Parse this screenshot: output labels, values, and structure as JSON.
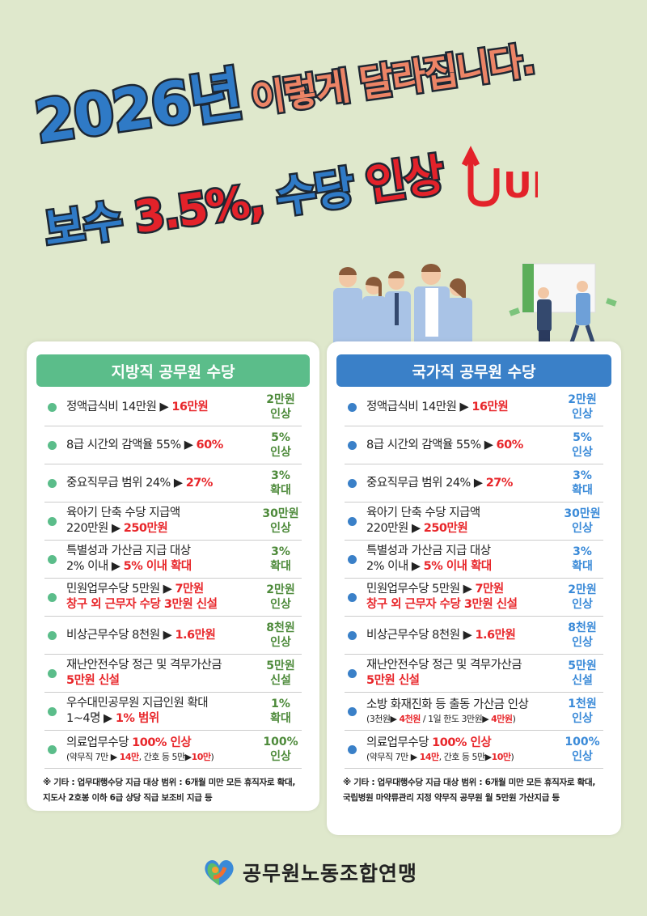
{
  "headline": {
    "year": "2026년",
    "sub": "이렇게 달라집니다.",
    "line2": [
      {
        "t": "보수 ",
        "c": "blue"
      },
      {
        "t": "3.5%, ",
        "c": "red"
      },
      {
        "t": "수당 ",
        "c": "blue"
      },
      {
        "t": "인상",
        "c": "red"
      }
    ],
    "up": "UP"
  },
  "colors": {
    "background": "#dfe8cc",
    "green": "#5bbd8a",
    "blue": "#3a80c8",
    "red": "#e8262a"
  },
  "left": {
    "title": "지방직 공무원 수당",
    "items": [
      {
        "lines": [
          [
            {
              "t": "정액급식비 14만원 ▶ "
            },
            {
              "t": "16만원",
              "r": 1
            }
          ]
        ],
        "badge": [
          "2만원",
          "인상"
        ]
      },
      {
        "lines": [
          [
            {
              "t": "8급 시간외 감액율 55% ▶ "
            },
            {
              "t": "60%",
              "r": 1
            }
          ]
        ],
        "badge": [
          "5%",
          "인상"
        ]
      },
      {
        "lines": [
          [
            {
              "t": "중요직무급 범위 24% ▶ "
            },
            {
              "t": "27%",
              "r": 1
            }
          ]
        ],
        "badge": [
          "3%",
          "확대"
        ]
      },
      {
        "lines": [
          [
            {
              "t": "육아기 단축 수당 지급액"
            }
          ],
          [
            {
              "t": "220만원  ▶ "
            },
            {
              "t": "250만원",
              "r": 1
            }
          ]
        ],
        "badge": [
          "30만원",
          "인상"
        ]
      },
      {
        "lines": [
          [
            {
              "t": "특별성과 가산금 지급 대상"
            }
          ],
          [
            {
              "t": "2%  이내 ▶ "
            },
            {
              "t": "5% 이내 확대",
              "r": 1
            }
          ]
        ],
        "badge": [
          "3%",
          "확대"
        ]
      },
      {
        "lines": [
          [
            {
              "t": "민원업무수당 5만원 ▶ "
            },
            {
              "t": "7만원",
              "r": 1
            }
          ],
          [
            {
              "t": "창구 외 근무자 수당 3만원 신설",
              "r": 1
            }
          ]
        ],
        "badge": [
          "2만원",
          "인상"
        ]
      },
      {
        "lines": [
          [
            {
              "t": "비상근무수당 8천원  ▶  "
            },
            {
              "t": "1.6만원",
              "r": 1
            }
          ]
        ],
        "badge": [
          "8천원",
          "인상"
        ]
      },
      {
        "lines": [
          [
            {
              "t": "재난안전수당 정근 및 격무가산금"
            }
          ],
          [
            {
              "t": "5만원 신설",
              "r": 1
            }
          ]
        ],
        "badge": [
          "5만원",
          "신설"
        ]
      },
      {
        "lines": [
          [
            {
              "t": "우수대민공무원 지급인원 확대"
            }
          ],
          [
            {
              "t": " 1~4명   ▶  "
            },
            {
              "t": "1% 범위",
              "r": 1
            }
          ]
        ],
        "badge": [
          "1%",
          "확대"
        ]
      },
      {
        "lines": [
          [
            {
              "t": "의료업무수당 "
            },
            {
              "t": "100% 인상",
              "r": 1
            }
          ],
          [
            {
              "t": "(약무직 7만 ▶ ",
              "s": 1
            },
            {
              "t": "14만",
              "r": 1,
              "s": 1
            },
            {
              "t": ", 간호 등 5만▶",
              "s": 1
            },
            {
              "t": "10만",
              "r": 1,
              "s": 1
            },
            {
              "t": ")",
              "s": 1
            }
          ]
        ],
        "badge": [
          "100%",
          "인상"
        ]
      }
    ],
    "note": "※ 기타 : 업무대행수당 지급 대상 범위 : 6개월 미만 모든 휴직자로 확대, 지도사 2호봉 이하 6급 상당 직급 보조비 지급 등"
  },
  "right": {
    "title": "국가직 공무원 수당",
    "items": [
      {
        "lines": [
          [
            {
              "t": "정액급식비 14만원 ▶ "
            },
            {
              "t": "16만원",
              "r": 1
            }
          ]
        ],
        "badge": [
          "2만원",
          "인상"
        ]
      },
      {
        "lines": [
          [
            {
              "t": "8급 시간외 감액율 55% ▶ "
            },
            {
              "t": "60%",
              "r": 1
            }
          ]
        ],
        "badge": [
          "5%",
          "인상"
        ]
      },
      {
        "lines": [
          [
            {
              "t": "중요직무급 범위 24% ▶ "
            },
            {
              "t": "27%",
              "r": 1
            }
          ]
        ],
        "badge": [
          "3%",
          "확대"
        ]
      },
      {
        "lines": [
          [
            {
              "t": "육아기 단축 수당 지급액"
            }
          ],
          [
            {
              "t": "220만원  ▶ "
            },
            {
              "t": "250만원",
              "r": 1
            }
          ]
        ],
        "badge": [
          "30만원",
          "인상"
        ]
      },
      {
        "lines": [
          [
            {
              "t": "특별성과 가산금 지급 대상"
            }
          ],
          [
            {
              "t": "2% 이내 ▶ "
            },
            {
              "t": "5% 이내 확대",
              "r": 1
            }
          ]
        ],
        "badge": [
          "3%",
          "확대"
        ]
      },
      {
        "lines": [
          [
            {
              "t": "민원업무수당 5만원 ▶ "
            },
            {
              "t": "7만원",
              "r": 1
            }
          ],
          [
            {
              "t": "창구 외 근무자 수당 3만원 신설",
              "r": 1
            }
          ]
        ],
        "badge": [
          "2만원",
          "인상"
        ]
      },
      {
        "lines": [
          [
            {
              "t": "비상근무수당 8천원  ▶  "
            },
            {
              "t": "1.6만원",
              "r": 1
            }
          ]
        ],
        "badge": [
          "8천원",
          "인상"
        ]
      },
      {
        "lines": [
          [
            {
              "t": "재난안전수당 정근 및 격무가산금"
            }
          ],
          [
            {
              "t": "5만원 신설",
              "r": 1
            }
          ]
        ],
        "badge": [
          "5만원",
          "신설"
        ]
      },
      {
        "lines": [
          [
            {
              "t": "소방 화재진화 등 출동 가산금 인상"
            }
          ],
          [
            {
              "t": "(3천원▶ ",
              "s": 1
            },
            {
              "t": "4천원",
              "r": 1,
              "s": 1
            },
            {
              "t": " / 1일 한도 3만원▶ ",
              "s": 1
            },
            {
              "t": "4만원",
              "r": 1,
              "s": 1
            },
            {
              "t": ")",
              "s": 1
            }
          ]
        ],
        "badge": [
          "1천원",
          "인상"
        ]
      },
      {
        "lines": [
          [
            {
              "t": "의료업무수당 "
            },
            {
              "t": "100% 인상",
              "r": 1
            }
          ],
          [
            {
              "t": "(약무직 7만 ▶ ",
              "s": 1
            },
            {
              "t": "14만",
              "r": 1,
              "s": 1
            },
            {
              "t": ", 간호 등 5만▶",
              "s": 1
            },
            {
              "t": "10만",
              "r": 1,
              "s": 1
            },
            {
              "t": ")",
              "s": 1
            }
          ]
        ],
        "badge": [
          "100%",
          "인상"
        ]
      }
    ],
    "note": "※ 기타 : 업무대행수당 지급 대상 범위 : 6개월 미만 모든 휴직자로 확대, 국립병원 마약류관리 지정 약무직 공무원 월 5만원 가산지급 등"
  },
  "footer": {
    "org": "공무원노동조합연맹",
    "logo": "union-heart-logo"
  }
}
